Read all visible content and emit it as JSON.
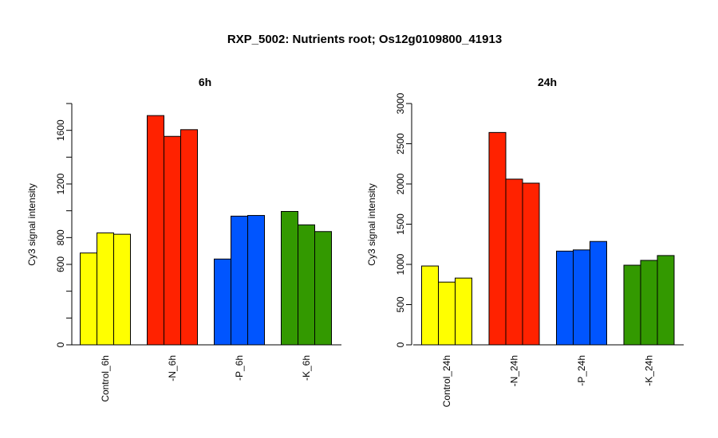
{
  "title": "RXP_5002: Nutrients root; Os12g0109800_41913",
  "chart_data": [
    {
      "type": "bar",
      "title": "6h",
      "ylabel": "Cy3 signal intensity",
      "ylim": [
        0,
        1800
      ],
      "yticks": [
        0,
        600,
        800,
        1200,
        1600
      ],
      "groups": [
        {
          "label": "Control_6h",
          "color": "#FFFF00",
          "values": [
            685,
            835,
            825
          ]
        },
        {
          "label": "-N_6h",
          "color": "#FF2200",
          "values": [
            1710,
            1555,
            1605
          ]
        },
        {
          "label": "-P_6h",
          "color": "#0055FF",
          "values": [
            640,
            960,
            965
          ]
        },
        {
          "label": "-K_6h",
          "color": "#339900",
          "values": [
            995,
            895,
            845
          ]
        }
      ]
    },
    {
      "type": "bar",
      "title": "24h",
      "ylabel": "Cy3 signal intensity",
      "ylim": [
        0,
        3000
      ],
      "yticks": [
        0,
        500,
        1000,
        1500,
        2000,
        2500,
        3000
      ],
      "groups": [
        {
          "label": "Control_24h",
          "color": "#FFFF00",
          "values": [
            980,
            780,
            830
          ]
        },
        {
          "label": "-N_24h",
          "color": "#FF2200",
          "values": [
            2640,
            2060,
            2010
          ]
        },
        {
          "label": "-P_24h",
          "color": "#0055FF",
          "values": [
            1165,
            1180,
            1285
          ]
        },
        {
          "label": "-K_24h",
          "color": "#339900",
          "values": [
            990,
            1050,
            1110
          ]
        }
      ]
    }
  ]
}
